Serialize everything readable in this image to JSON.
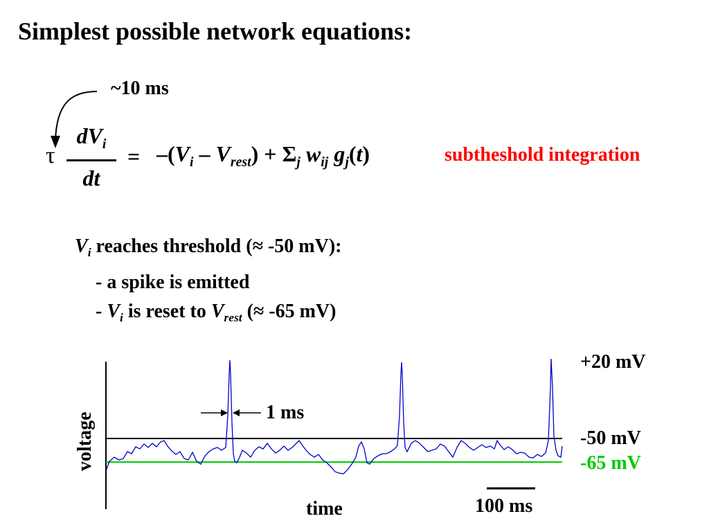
{
  "title": "Simplest possible network equations:",
  "equation": {
    "tau_note": "~10 ms",
    "tau": "τ",
    "lhs_num_a": "dV",
    "lhs_num_sub": "i",
    "lhs_den": "dt",
    "equals": "=",
    "rhs_a": "–(",
    "rhs_v": "V",
    "rhs_v_sub": "i",
    "rhs_b": " – ",
    "rhs_vrest": "V",
    "rhs_vrest_sub": "rest",
    "rhs_c": ") + Σ",
    "rhs_sum_sub": "j",
    "rhs_w": " w",
    "rhs_w_sub": "ij",
    "rhs_g": " g",
    "rhs_g_sub": "j",
    "rhs_d": "(",
    "rhs_t": "t",
    "rhs_e": ")",
    "annotation": "subtheshold integration"
  },
  "threshold_rule": {
    "v": "V",
    "v_sub": "i",
    "text": " reaches threshold (≈ -50 mV):",
    "bullet1": "- a spike is emitted",
    "bullet2_a": "- ",
    "bullet2_v": "V",
    "bullet2_v_sub": "i",
    "bullet2_b": " is reset to ",
    "bullet2_vrest": "V",
    "bullet2_vrest_sub": "rest",
    "bullet2_c": " (≈ -65 mV)"
  },
  "trace_plot": {
    "y_axis_label": "voltage",
    "x_axis_label": "time",
    "level_labels": {
      "peak": "+20 mV",
      "threshold": "-50 mV",
      "rest": "-65 mV"
    },
    "spike_width_label": "1 ms",
    "scale_bar_label": "100 ms",
    "colors": {
      "trace": "#0000cc",
      "threshold_line": "#000000",
      "rest_line": "#00cc00",
      "annotation": "#ff0000"
    },
    "spikes_count": 3
  }
}
